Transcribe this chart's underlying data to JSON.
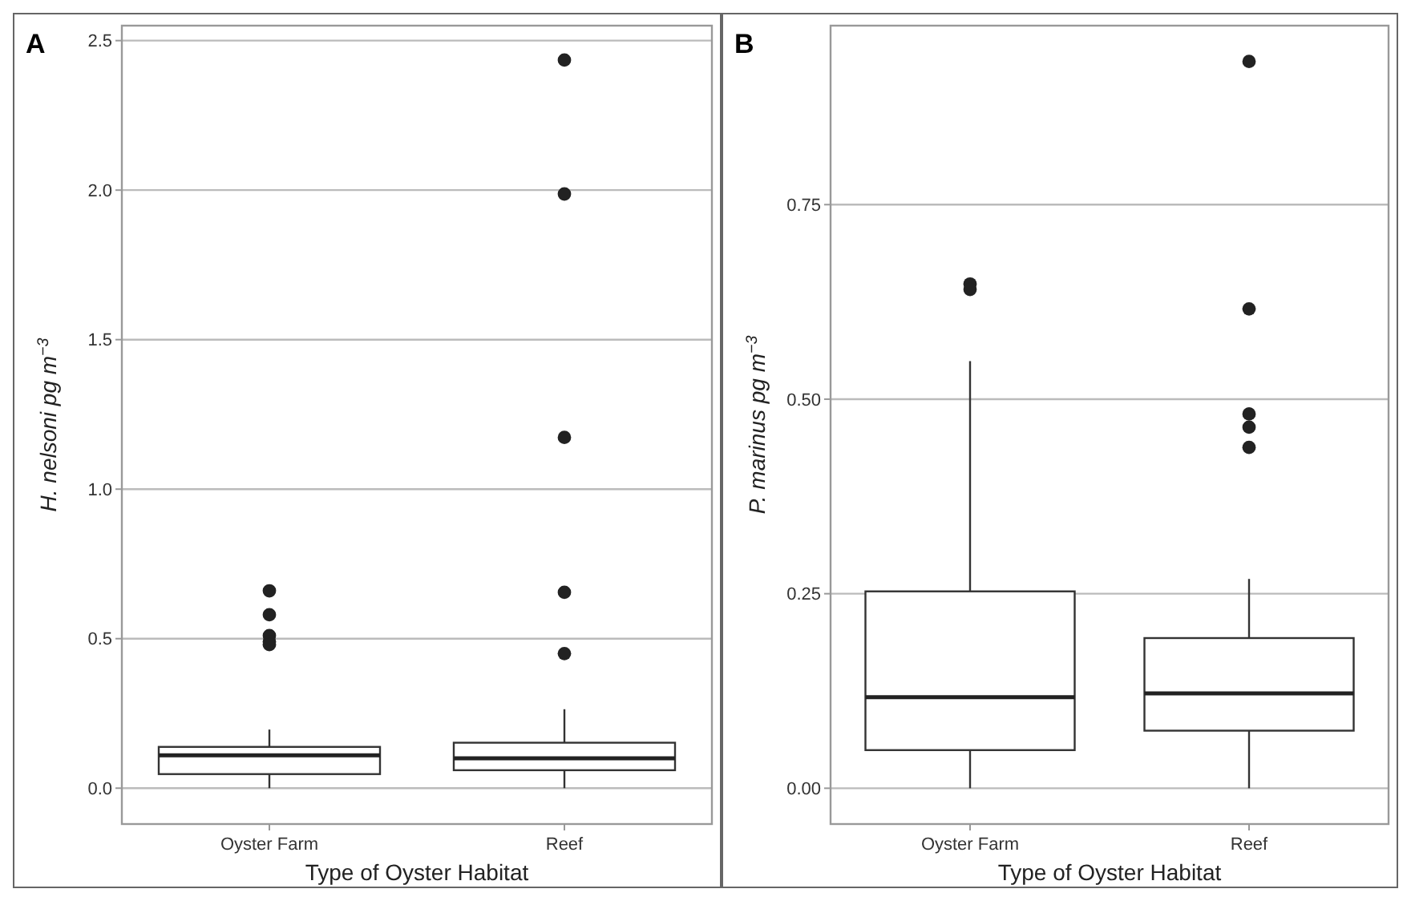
{
  "chart_data": [
    {
      "type": "box",
      "title": "A",
      "xlabel": "Type of Oyster Habitat",
      "ylabel": "H. nelsoni  pg m$^{−3}$",
      "categories": [
        "Oyster Farm",
        "Reef"
      ],
      "boxes": [
        {
          "low": 0,
          "q1": 0.047,
          "median": 0.11,
          "q3": 0.138,
          "high": 0.196,
          "outliers": [
            0.66,
            0.58,
            0.51,
            0.49,
            0.48
          ]
        },
        {
          "low": 0,
          "q1": 0.06,
          "median": 0.1,
          "q3": 0.152,
          "high": 0.264,
          "outliers": [
            2.435,
            1.987,
            1.173,
            0.655,
            0.45
          ]
        }
      ],
      "ylim": [
        -0.12,
        2.55
      ],
      "yticks": [
        {
          "value": 0,
          "label": "0.0"
        },
        0.5,
        {
          "value": 1,
          "label": "1.0"
        },
        1.5,
        {
          "value": 2,
          "label": "2.0"
        },
        2.5
      ],
      "grid": "y"
    },
    {
      "type": "box",
      "title": "B",
      "xlabel": "Type of Oyster Habitat",
      "ylabel": "P. marinus  pg m$^{−3}$",
      "categories": [
        "Oyster Farm",
        "Reef"
      ],
      "boxes": [
        {
          "low": 0,
          "q1": 0.049,
          "median": 0.117,
          "q3": 0.253,
          "high": 0.549,
          "outliers": [
            0.648,
            0.641
          ]
        },
        {
          "low": 0,
          "q1": 0.074,
          "median": 0.122,
          "q3": 0.193,
          "high": 0.269,
          "outliers": [
            0.934,
            0.616,
            0.481,
            0.464,
            0.438
          ]
        }
      ],
      "ylim": [
        -0.046,
        0.98
      ],
      "yticks": [
        {
          "value": 0,
          "label": "0.00"
        },
        0.25,
        {
          "value": 0.5,
          "label": "0.50"
        },
        0.75
      ],
      "grid": "y"
    }
  ]
}
